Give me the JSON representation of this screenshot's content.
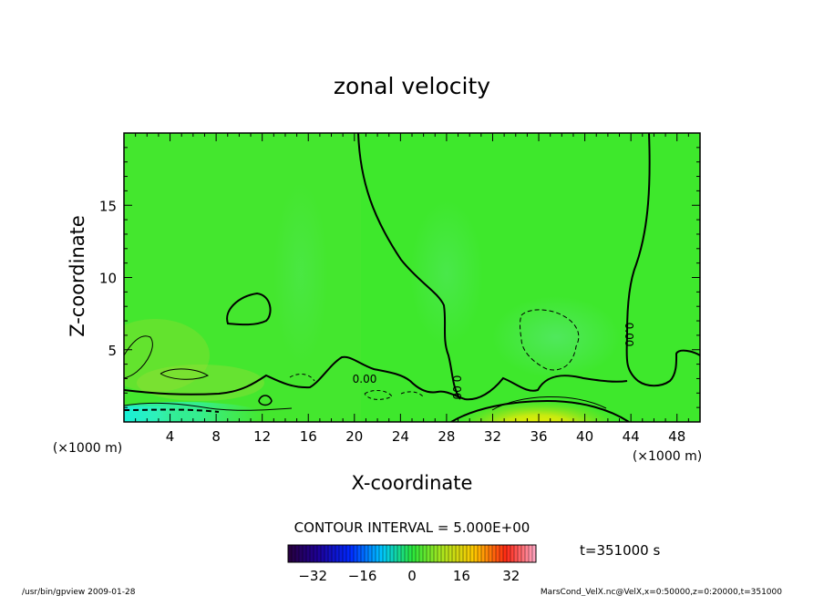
{
  "chart_data": {
    "type": "heatmap",
    "title": "zonal velocity",
    "xlabel": "X-coordinate",
    "ylabel": "Z-coordinate",
    "x_unit": "(×1000 m)",
    "y_unit": "(×1000 m)",
    "xlim": [
      0,
      50
    ],
    "ylim": [
      0,
      20
    ],
    "x_ticks": [
      4,
      8,
      12,
      16,
      20,
      24,
      28,
      32,
      36,
      40,
      44,
      48
    ],
    "y_ticks": [
      5,
      10,
      15
    ],
    "contour_interval_text": "CONTOUR INTERVAL = 5.000E+00",
    "contour_labels": [
      "0.00",
      "0.00",
      "0.00"
    ],
    "colorbar": {
      "min": -40,
      "max": 40,
      "ticks": [
        -32,
        -16,
        0,
        16,
        32
      ]
    },
    "time_text": "t=351000 s",
    "footer_left": "/usr/bin/gpview   2009-01-28",
    "footer_right": "MarsCond_VelX.nc@VelX,x=0:50000,z=0:20000,t=351000"
  }
}
